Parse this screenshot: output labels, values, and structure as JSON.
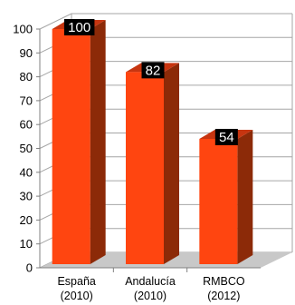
{
  "chart_data": {
    "type": "bar",
    "categories": [
      [
        "España",
        "(2010)"
      ],
      [
        "Andalucía",
        "(2010)"
      ],
      [
        "RMBCO",
        "(2012)"
      ]
    ],
    "values": [
      100,
      82,
      54
    ],
    "data_labels": [
      "100",
      "82",
      "54"
    ],
    "ylim": [
      0,
      100
    ],
    "yticks": [
      0,
      10,
      20,
      30,
      40,
      50,
      60,
      70,
      80,
      90,
      100
    ],
    "grid": true,
    "style": "3d",
    "colors": {
      "bar_front": "#ff4510",
      "bar_side": "#8c2a08",
      "bar_top": "#c73510",
      "floor": "#c8c8c8",
      "gridline": "#a6a6a6",
      "label_box": "#000000",
      "label_text": "#ffffff"
    }
  }
}
